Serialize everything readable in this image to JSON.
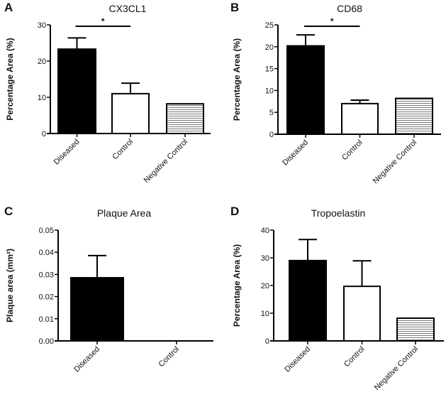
{
  "chart_data": [
    {
      "panel": "A",
      "type": "bar",
      "title": "CX3CL1",
      "ylabel": "Percentage Area (%)",
      "xlabel": "",
      "categories": [
        "Diseased",
        "Control",
        "Negative Control"
      ],
      "values": [
        23.3,
        11.0,
        8.2
      ],
      "errors": [
        3.1,
        2.9,
        0
      ],
      "fills": [
        "solid-black",
        "white",
        "horizontal-hatch"
      ],
      "ylim": [
        0,
        30
      ],
      "yticks": [
        "0",
        "10",
        "20",
        "30"
      ],
      "ytick_values": [
        0,
        10,
        20,
        30
      ],
      "significance": {
        "from": "Diseased",
        "to": "Control",
        "label": "*"
      }
    },
    {
      "panel": "B",
      "type": "bar",
      "title": "CD68",
      "ylabel": "Percentage Area (%)",
      "xlabel": "",
      "categories": [
        "Diseased",
        "Control",
        "Negative Control"
      ],
      "values": [
        20.2,
        7.0,
        8.2
      ],
      "errors": [
        2.5,
        0.8,
        0
      ],
      "fills": [
        "solid-black",
        "white",
        "horizontal-hatch"
      ],
      "ylim": [
        0,
        25
      ],
      "yticks": [
        "0",
        "5",
        "10",
        "15",
        "20",
        "25"
      ],
      "ytick_values": [
        0,
        5,
        10,
        15,
        20,
        25
      ],
      "significance": {
        "from": "Diseased",
        "to": "Control",
        "label": "*"
      }
    },
    {
      "panel": "C",
      "type": "bar",
      "title": "Plaque Area",
      "ylabel": "Plaque area (mm²)",
      "xlabel": "",
      "categories": [
        "Diseased",
        "Control"
      ],
      "values": [
        0.0285,
        0
      ],
      "errors": [
        0.01,
        0
      ],
      "fills": [
        "solid-black",
        "white"
      ],
      "ylim": [
        0,
        0.05
      ],
      "yticks": [
        "0.00",
        "0.01",
        "0.02",
        "0.03",
        "0.04",
        "0.05"
      ],
      "ytick_values": [
        0,
        0.01,
        0.02,
        0.03,
        0.04,
        0.05
      ]
    },
    {
      "panel": "D",
      "type": "bar",
      "title": "Tropoelastin",
      "ylabel": "Percentage Area (%)",
      "xlabel": "",
      "categories": [
        "Diseased",
        "Control",
        "Negative Control"
      ],
      "values": [
        29.0,
        19.7,
        8.2
      ],
      "errors": [
        7.6,
        9.2,
        0
      ],
      "fills": [
        "solid-black",
        "white",
        "horizontal-hatch"
      ],
      "ylim": [
        0,
        40
      ],
      "yticks": [
        "0",
        "10",
        "20",
        "30",
        "40"
      ],
      "ytick_values": [
        0,
        10,
        20,
        30,
        40
      ]
    }
  ]
}
